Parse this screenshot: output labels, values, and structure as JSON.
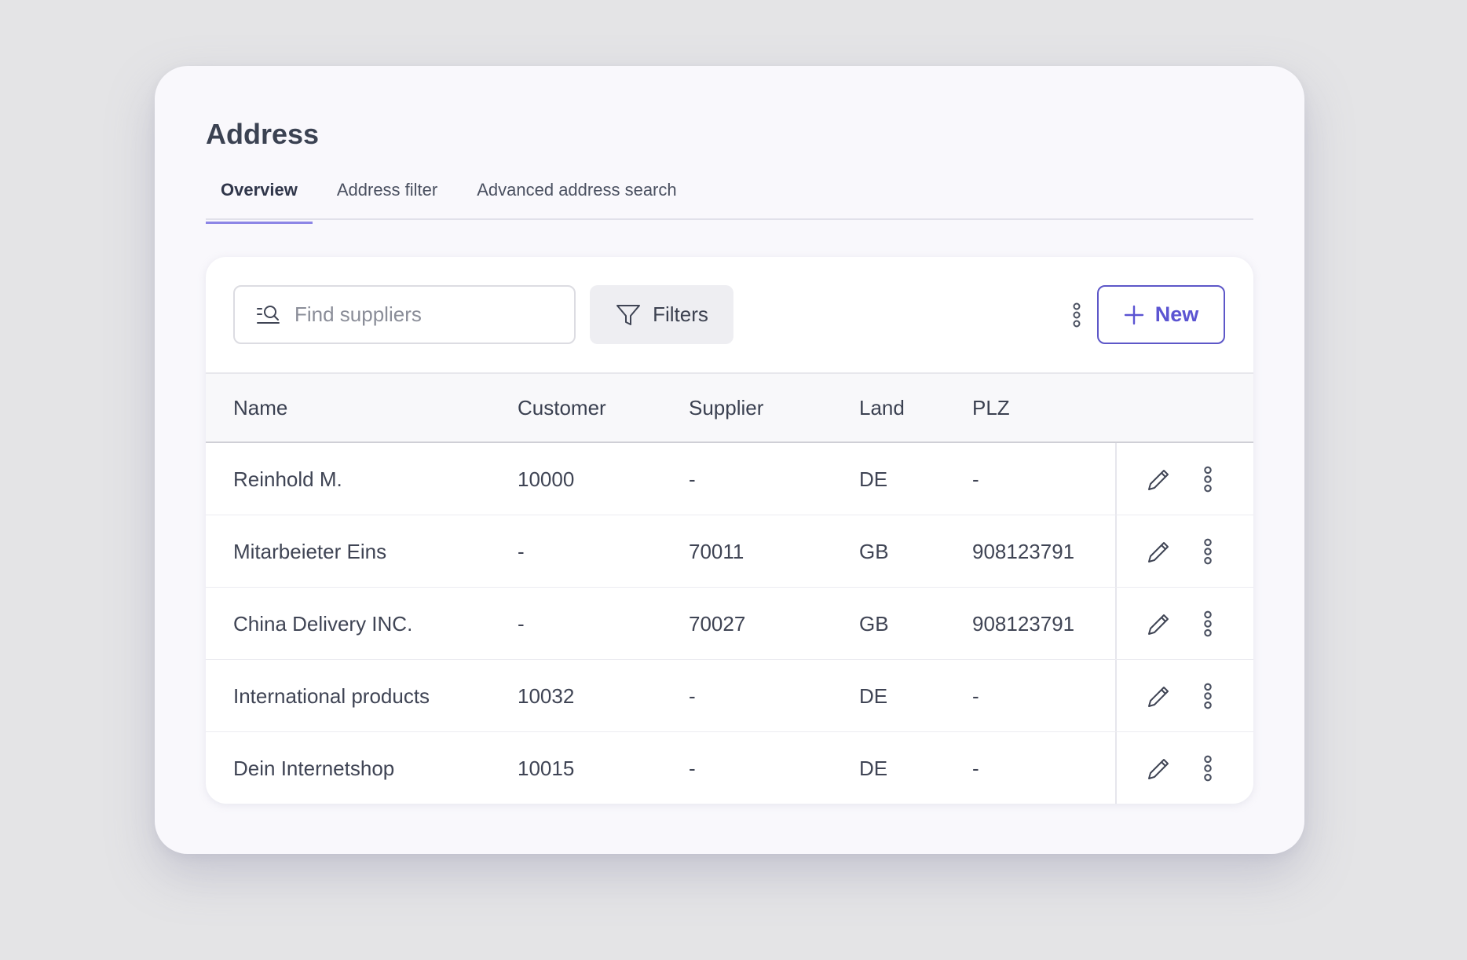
{
  "page": {
    "title": "Address",
    "tabs": [
      {
        "label": "Overview",
        "active": true
      },
      {
        "label": "Address filter",
        "active": false
      },
      {
        "label": "Advanced address search",
        "active": false
      }
    ]
  },
  "toolbar": {
    "search_placeholder": "Find suppliers",
    "filters_label": "Filters",
    "new_label": "New"
  },
  "table": {
    "columns": [
      "Name",
      "Customer",
      "Supplier",
      "Land",
      "PLZ"
    ],
    "rows": [
      {
        "name": "Reinhold M.",
        "customer": "10000",
        "supplier": "-",
        "land": "DE",
        "plz": "-"
      },
      {
        "name": "Mitarbeieter Eins",
        "customer": "-",
        "supplier": "70011",
        "land": "GB",
        "plz": "908123791"
      },
      {
        "name": "China Delivery INC.",
        "customer": "-",
        "supplier": "70027",
        "land": "GB",
        "plz": "908123791"
      },
      {
        "name": "International products",
        "customer": "10032",
        "supplier": "-",
        "land": "DE",
        "plz": "-"
      },
      {
        "name": "Dein Internetshop",
        "customer": "10015",
        "supplier": "-",
        "land": "DE",
        "plz": "-"
      }
    ]
  },
  "icons": {
    "search": "search-list-icon",
    "filter": "funnel-icon",
    "more": "vertical-dots-icon",
    "add": "plus-icon",
    "edit": "pencil-icon"
  },
  "colors": {
    "accent": "#5b54d2",
    "tab_underline": "#8d86e6",
    "background": "#e4e4e6",
    "card": "#f9f8fc"
  }
}
